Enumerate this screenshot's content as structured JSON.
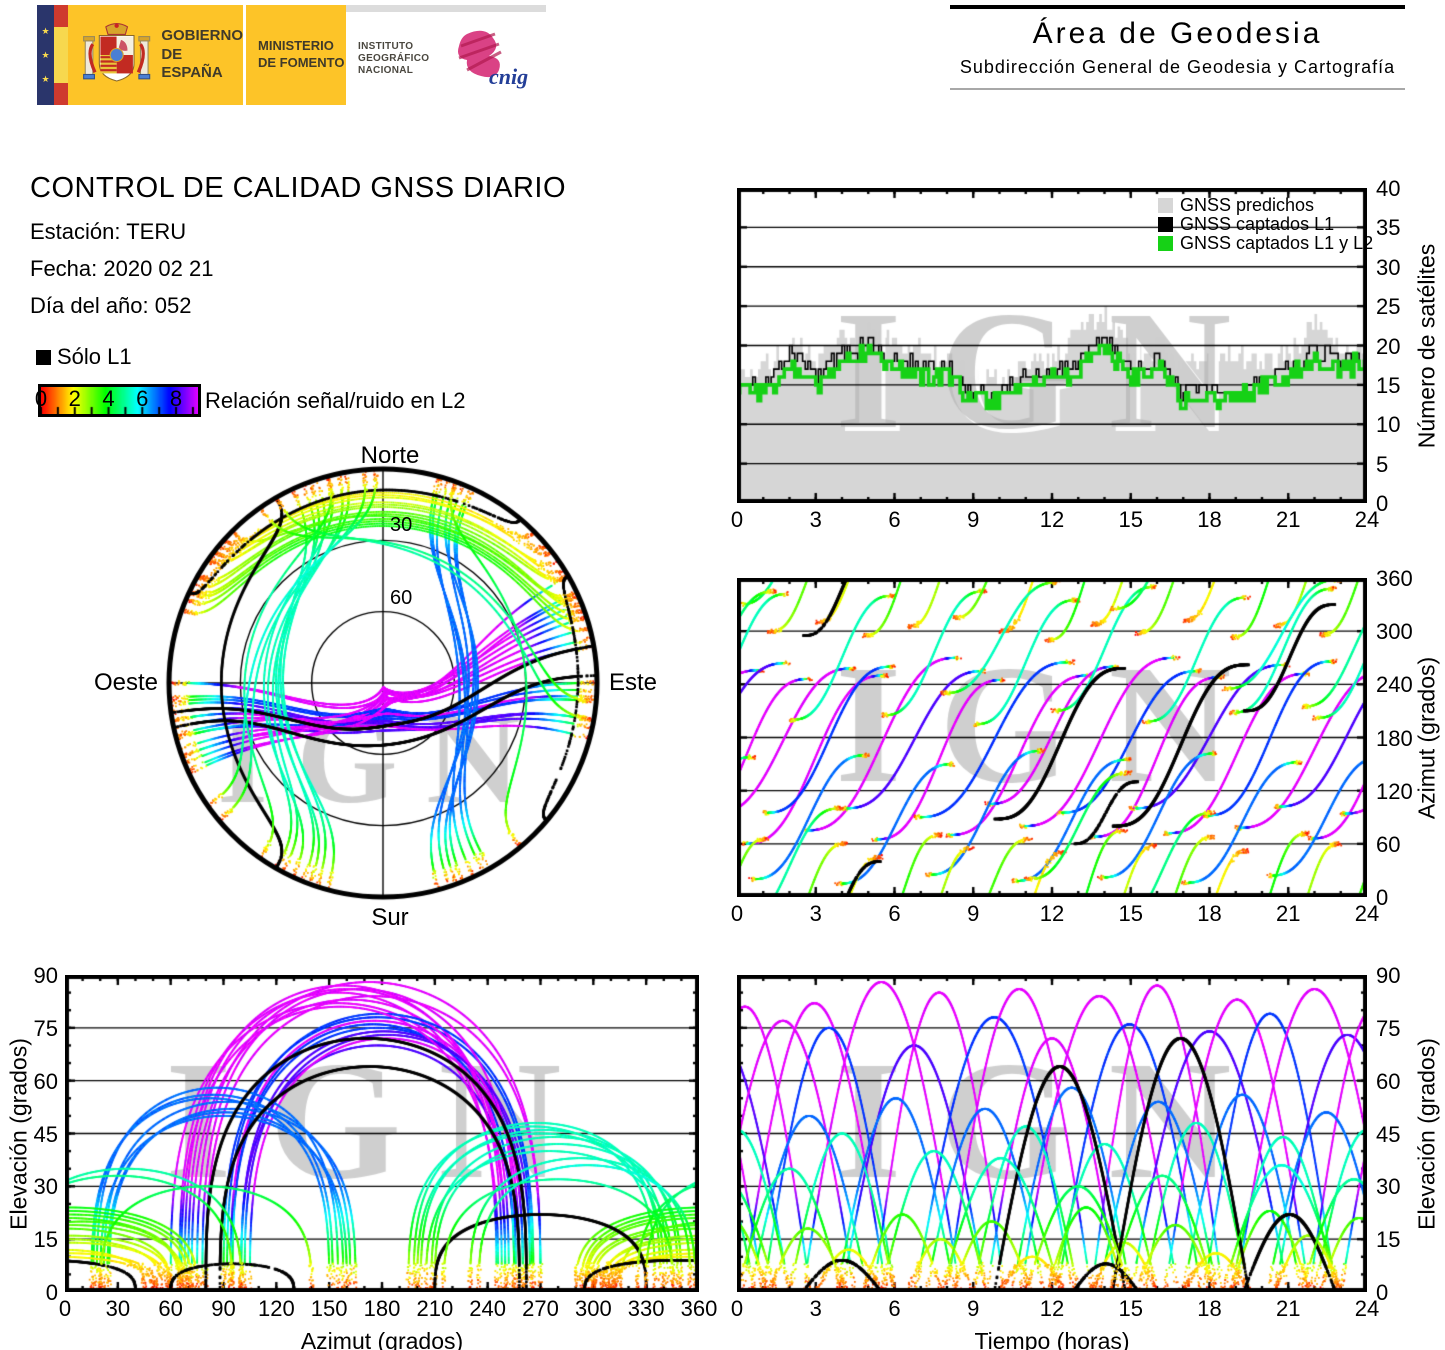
{
  "watermark": "IGN",
  "header": {
    "banner": {
      "gobierno_l1": "GOBIERNO",
      "gobierno_l2": "DE ESPAÑA",
      "ministerio_l1": "MINISTERIO",
      "ministerio_l2": "DE FOMENTO",
      "instituto_l1": "INSTITUTO",
      "instituto_l2": "GEOGRÁFICO",
      "instituto_l3": "NACIONAL",
      "cnig": "cnig"
    },
    "area_title": "Área de Geodesia",
    "area_subtitle": "Subdirección General de Geodesia y Cartografía"
  },
  "info": {
    "title": "CONTROL DE CALIDAD GNSS DIARIO",
    "station": "Estación: TERU",
    "date": "Fecha: 2020 02 21",
    "doy": "Día del año: 052"
  },
  "snr_legend": {
    "solo_l1": "Sólo L1",
    "label": "Relación señal/ruido en L2",
    "ticks": [
      0,
      2,
      4,
      6,
      8
    ],
    "bar_max": 9.3
  },
  "skyplot": {
    "north": "Norte",
    "south": "Sur",
    "east": "Este",
    "west": "Oeste",
    "ring_labels": [
      {
        "elev": 30,
        "label": "30"
      },
      {
        "elev": 60,
        "label": "60"
      }
    ]
  },
  "colors": {
    "accent_green": "#16d116",
    "gray_fill": "#d6d6d6",
    "black": "#000000",
    "banner_yellow": "#fdc428",
    "banner_navy": "#2a356b",
    "banner_red": "#cf3a2e",
    "flag_yellow": "#f7d84e",
    "cnig_magenta": "#d62e78",
    "cnig_blue": "#233e97"
  },
  "chart_data": {
    "colormap": {
      "description": "Relación señal/ruido en L2: 0 → 9.3 mapped red→orange→yellow→green→cyan→blue→violet→magenta",
      "bar_min": 0,
      "bar_max": 9.3,
      "l1_only_color": "#000000"
    },
    "charts": [
      {
        "id": "sats",
        "type": "area",
        "ylabel": "Número de satélites",
        "xlim": [
          0,
          24
        ],
        "ylim": [
          0,
          40
        ],
        "xticks": [
          0,
          3,
          6,
          9,
          12,
          15,
          18,
          21,
          24
        ],
        "yticks": [
          0,
          5,
          10,
          15,
          20,
          25,
          30,
          35,
          40
        ],
        "x_minor": 1,
        "grid": "y",
        "legend_position": "top-right",
        "legend": [
          {
            "label": "GNSS predichos",
            "color": "#d6d6d6"
          },
          {
            "label": "GNSS captados L1",
            "color": "#000000"
          },
          {
            "label": "GNSS captados L1 y L2",
            "color": "#16d116"
          }
        ],
        "hours": [
          0,
          1,
          2,
          3,
          4,
          5,
          6,
          7,
          8,
          9,
          10,
          11,
          12,
          13,
          14,
          15,
          16,
          17,
          18,
          19,
          20,
          21,
          22,
          23,
          24
        ],
        "series": [
          {
            "name": "GNSS predichos",
            "values": [
              17,
              17,
              20,
              18,
              21,
              22,
              20,
              19,
              18,
              16,
              16,
              18,
              18,
              22,
              24,
              19,
              20,
              17,
              18,
              19,
              18,
              19,
              23,
              20,
              19
            ]
          },
          {
            "name": "GNSS captados L1",
            "values": [
              15,
              15,
              19,
              16,
              19,
              20,
              18,
              17,
              17,
              14,
              14,
              16,
              16,
              18,
              21,
              17,
              18,
              14,
              14,
              14,
              16,
              17,
              19,
              18,
              18
            ]
          },
          {
            "name": "GNSS captados L1 y L2",
            "values": [
              15,
              14,
              17,
              15,
              18,
              19,
              17,
              16,
              16,
              13,
              13,
              15,
              16,
              17,
              20,
              16,
              17,
              13,
              13,
              13,
              15,
              16,
              18,
              17,
              18
            ]
          }
        ],
        "noise_seed": 7
      },
      {
        "id": "az_time",
        "type": "scatter",
        "ylabel": "Azimut (grados)",
        "xlim": [
          0,
          24
        ],
        "ylim": [
          0,
          360
        ],
        "xticks": [
          0,
          3,
          6,
          9,
          12,
          15,
          18,
          21,
          24
        ],
        "yticks": [
          0,
          60,
          120,
          180,
          240,
          300,
          360
        ],
        "x_minor": 1,
        "grid": "y",
        "x_field": "time_hours",
        "y_field": "azimuth_deg"
      },
      {
        "id": "elev_az",
        "type": "scatter",
        "xlabel": "Azimut (grados)",
        "ylabel": "Elevación (grados)",
        "xlim": [
          0,
          360
        ],
        "ylim": [
          0,
          90
        ],
        "xticks": [
          0,
          30,
          60,
          90,
          120,
          150,
          180,
          210,
          240,
          270,
          300,
          330,
          360
        ],
        "yticks": [
          0,
          15,
          30,
          45,
          60,
          75,
          90
        ],
        "x_minor": 10,
        "y_minor": 5,
        "grid": "y",
        "x_field": "azimuth_deg",
        "y_field": "elevation_deg"
      },
      {
        "id": "elev_time",
        "type": "scatter",
        "xlabel": "Tiempo (horas)",
        "ylabel": "Elevación (grados)",
        "xlim": [
          0,
          24
        ],
        "ylim": [
          0,
          90
        ],
        "xticks": [
          0,
          3,
          6,
          9,
          12,
          15,
          18,
          21,
          24
        ],
        "yticks": [
          0,
          15,
          30,
          45,
          60,
          75,
          90
        ],
        "x_minor": 1,
        "y_minor": 5,
        "grid": "y",
        "x_field": "time_hours",
        "y_field": "elevation_deg"
      }
    ],
    "satellite_passes": {
      "fields": [
        "start_hour",
        "duration_h",
        "max_elev_deg",
        "rise_az_deg",
        "set_az_deg",
        "l1_only",
        "snr_peak"
      ],
      "passes": [
        [
          0.2,
          5.5,
          82,
          60,
          250,
          0,
          9.3
        ],
        [
          1.0,
          5.0,
          75,
          95,
          260,
          0,
          7.2
        ],
        [
          2.5,
          6.0,
          88,
          75,
          270,
          0,
          9.3
        ],
        [
          4.0,
          5.5,
          70,
          100,
          255,
          0,
          8.2
        ],
        [
          5.2,
          5.0,
          85,
          65,
          245,
          0,
          9.3
        ],
        [
          6.8,
          6.0,
          78,
          90,
          265,
          0,
          7.2
        ],
        [
          8.0,
          5.5,
          86,
          70,
          250,
          0,
          9.3
        ],
        [
          9.5,
          5.0,
          72,
          105,
          260,
          0,
          9.3
        ],
        [
          10.8,
          6.0,
          84,
          80,
          270,
          0,
          9.3
        ],
        [
          12.2,
          5.5,
          76,
          95,
          255,
          0,
          7.2
        ],
        [
          13.5,
          5.0,
          87,
          68,
          248,
          0,
          9.3
        ],
        [
          15.0,
          6.0,
          74,
          100,
          262,
          0,
          8.2
        ],
        [
          16.3,
          5.5,
          83,
          72,
          252,
          0,
          9.3
        ],
        [
          17.8,
          5.0,
          79,
          92,
          266,
          0,
          7.2
        ],
        [
          19.0,
          6.0,
          86,
          78,
          256,
          0,
          9.3
        ],
        [
          20.5,
          5.5,
          73,
          102,
          264,
          0,
          8.2
        ],
        [
          21.8,
          5.0,
          81,
          66,
          246,
          0,
          9.3
        ],
        [
          23.0,
          5.5,
          77,
          94,
          258,
          0,
          9.3
        ],
        [
          0.5,
          4.5,
          50,
          20,
          160,
          0,
          6.8
        ],
        [
          2.0,
          4.0,
          45,
          200,
          340,
          0,
          5.2
        ],
        [
          3.8,
          4.5,
          55,
          15,
          150,
          0,
          6.8
        ],
        [
          5.5,
          4.0,
          40,
          205,
          345,
          0,
          5.2
        ],
        [
          7.2,
          4.5,
          52,
          25,
          165,
          0,
          6.8
        ],
        [
          9.0,
          4.0,
          47,
          195,
          335,
          0,
          5.2
        ],
        [
          10.5,
          4.5,
          58,
          18,
          155,
          0,
          6.8
        ],
        [
          12.0,
          4.0,
          42,
          210,
          350,
          0,
          5.2
        ],
        [
          13.8,
          4.5,
          54,
          22,
          162,
          0,
          6.8
        ],
        [
          15.5,
          4.0,
          48,
          198,
          338,
          0,
          5.2
        ],
        [
          17.0,
          4.5,
          56,
          16,
          152,
          0,
          6.8
        ],
        [
          18.8,
          4.0,
          44,
          208,
          348,
          0,
          5.2
        ],
        [
          20.2,
          4.5,
          51,
          24,
          158,
          0,
          6.8
        ],
        [
          22.0,
          4.0,
          46,
          202,
          342,
          0,
          5.2
        ],
        [
          1.2,
          3.0,
          18,
          300,
          60,
          0,
          4.2
        ],
        [
          3.0,
          2.5,
          12,
          310,
          45,
          0,
          3.6
        ],
        [
          4.8,
          3.0,
          22,
          295,
          70,
          0,
          4.2
        ],
        [
          6.5,
          2.5,
          15,
          305,
          55,
          0,
          3.8
        ],
        [
          8.2,
          3.0,
          20,
          315,
          65,
          0,
          4.2
        ],
        [
          10.0,
          2.5,
          10,
          300,
          50,
          0,
          3.4
        ],
        [
          11.8,
          3.0,
          24,
          290,
          75,
          0,
          4.4
        ],
        [
          13.5,
          2.5,
          14,
          308,
          58,
          0,
          3.6
        ],
        [
          15.2,
          3.0,
          19,
          298,
          68,
          0,
          4.2
        ],
        [
          17.0,
          2.5,
          11,
          312,
          52,
          0,
          3.4
        ],
        [
          18.8,
          3.0,
          23,
          293,
          72,
          0,
          4.4
        ],
        [
          20.5,
          2.5,
          16,
          306,
          60,
          0,
          3.8
        ],
        [
          22.2,
          3.0,
          21,
          296,
          66,
          0,
          4.2
        ],
        [
          9.8,
          5.0,
          64,
          88,
          258,
          1,
          0
        ],
        [
          14.3,
          5.2,
          72,
          80,
          262,
          1,
          0
        ],
        [
          19.3,
          3.5,
          22,
          210,
          330,
          1,
          0
        ],
        [
          2.5,
          3.0,
          9,
          295,
          40,
          1,
          0
        ],
        [
          12.8,
          2.5,
          8,
          60,
          130,
          1,
          0
        ],
        [
          0.0,
          4.0,
          35,
          330,
          100,
          0,
          5.0
        ],
        [
          7.8,
          4.5,
          38,
          230,
          355,
          0,
          5.2
        ],
        [
          14.2,
          4.0,
          33,
          325,
          95,
          0,
          4.8
        ],
        [
          18.5,
          4.5,
          36,
          235,
          358,
          0,
          5.4
        ],
        [
          11.0,
          4.0,
          30,
          20,
          140,
          0,
          4.6
        ],
        [
          21.5,
          4.0,
          32,
          215,
          345,
          0,
          5.0
        ]
      ]
    }
  }
}
